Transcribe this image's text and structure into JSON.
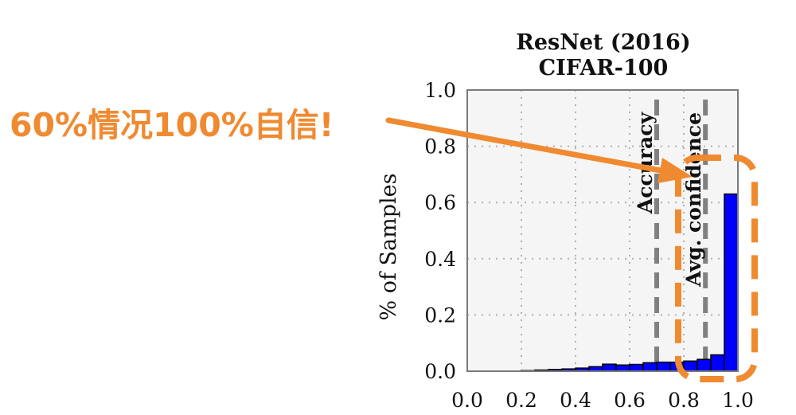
{
  "chart_data": {
    "type": "bar",
    "title": "ResNet (2016)",
    "subtitle": "CIFAR-100",
    "xlabel": "",
    "ylabel": "% of Samples",
    "xlim": [
      0.0,
      1.0
    ],
    "ylim": [
      0.0,
      1.0
    ],
    "x_ticks": [
      "0.0",
      "0.2",
      "0.4",
      "0.6",
      "0.8",
      "1.0"
    ],
    "y_ticks": [
      "0.0",
      "0.2",
      "0.4",
      "0.6",
      "0.8",
      "1.0"
    ],
    "grid": true,
    "bin_width": 0.05,
    "bins": [
      {
        "x": 0.2,
        "value": 0.002
      },
      {
        "x": 0.25,
        "value": 0.004
      },
      {
        "x": 0.3,
        "value": 0.006
      },
      {
        "x": 0.35,
        "value": 0.008
      },
      {
        "x": 0.4,
        "value": 0.011
      },
      {
        "x": 0.45,
        "value": 0.016
      },
      {
        "x": 0.5,
        "value": 0.025
      },
      {
        "x": 0.55,
        "value": 0.022
      },
      {
        "x": 0.6,
        "value": 0.024
      },
      {
        "x": 0.65,
        "value": 0.03
      },
      {
        "x": 0.7,
        "value": 0.032
      },
      {
        "x": 0.75,
        "value": 0.032
      },
      {
        "x": 0.8,
        "value": 0.036
      },
      {
        "x": 0.85,
        "value": 0.042
      },
      {
        "x": 0.9,
        "value": 0.058
      },
      {
        "x": 0.95,
        "value": 0.63
      }
    ],
    "reference_lines": [
      {
        "label": "Accuracy",
        "x": 0.7
      },
      {
        "label": "Avg. confidence",
        "x": 0.88
      }
    ],
    "colors": {
      "bar": "#0000ff",
      "bar_edge": "#000000",
      "plot_bg": "#f5f5f5",
      "grid": "#b0b0b0",
      "ref_line": "#808080",
      "annotation": "#f08a30"
    },
    "annotation": {
      "text": "60%情况100%自信!"
    }
  }
}
